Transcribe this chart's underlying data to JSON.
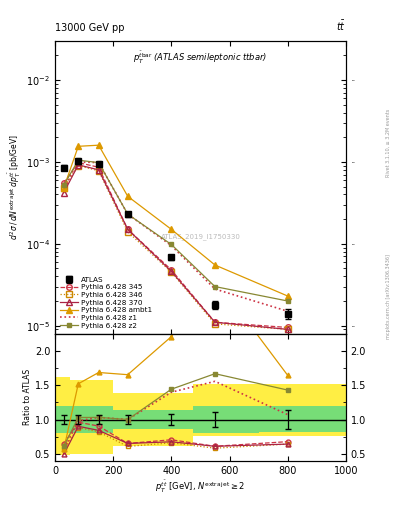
{
  "title_top": "13000 GeV pp",
  "title_top_right": "tt",
  "plot_title": "$p_T^{t\\bar{t}}$ (ATLAS semileptonic ttbar)",
  "watermark": "ATLAS_2019_I1750330",
  "x_pts": [
    30,
    80,
    150,
    250,
    400,
    550,
    800
  ],
  "atlas_y": [
    0.00085,
    0.00102,
    0.00095,
    0.00023,
    6.8e-05,
    1.8e-05,
    1.4e-05
  ],
  "atlas_yerr": [
    6e-05,
    7e-05,
    6e-05,
    1.5e-05,
    5e-06,
    2e-06,
    2e-06
  ],
  "p345_y": [
    0.00055,
    0.00098,
    0.00086,
    0.00015,
    4.8e-05,
    1.1e-05,
    9.5e-06
  ],
  "p346_y": [
    0.00048,
    0.0009,
    0.00078,
    0.00014,
    4.5e-05,
    1.05e-05,
    9e-06
  ],
  "p370_y": [
    0.00042,
    0.00092,
    0.0008,
    0.00015,
    4.6e-05,
    1.1e-05,
    9e-06
  ],
  "pambt_y": [
    0.00048,
    0.00155,
    0.0016,
    0.00038,
    0.00015,
    5.5e-05,
    2.3e-05
  ],
  "pz1_y": [
    0.00048,
    0.001,
    0.00098,
    0.00023,
    9.5e-05,
    2.8e-05,
    1.5e-05
  ],
  "pz2_y": [
    0.00052,
    0.00105,
    0.00098,
    0.00023,
    9.8e-05,
    3e-05,
    2e-05
  ],
  "color_atlas": "#000000",
  "color_p345": "#cc3344",
  "color_p346": "#cc8800",
  "color_p370": "#aa2244",
  "color_pambt": "#dd9900",
  "color_pz1": "#cc3344",
  "color_pz2": "#888833",
  "color_green_band": "#77dd77",
  "color_yellow_band": "#ffee44",
  "band_edges": [
    0,
    50,
    200,
    475,
    700,
    1000
  ],
  "green_lo": [
    0.8,
    0.8,
    0.86,
    0.8,
    0.82
  ],
  "green_hi": [
    1.2,
    1.2,
    1.14,
    1.2,
    1.2
  ],
  "yellow_lo": [
    0.48,
    0.5,
    0.62,
    0.76,
    0.76
  ],
  "yellow_hi": [
    1.62,
    1.58,
    1.38,
    1.52,
    1.52
  ],
  "xlim": [
    0,
    1000
  ],
  "ylim_main": [
    8e-06,
    0.03
  ],
  "ylim_ratio": [
    0.4,
    2.25
  ]
}
